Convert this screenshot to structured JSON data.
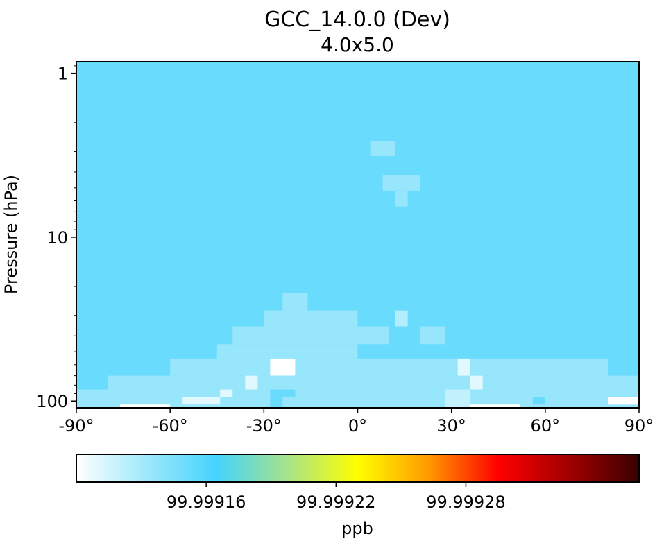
{
  "chart_data": {
    "type": "heatmap",
    "title": "GCC_14.0.0 (Dev)",
    "subtitle": "4.0x5.0",
    "xlabel": "",
    "ylabel": "Pressure (hPa)",
    "xlim": [
      -90,
      90
    ],
    "ylim": [
      0.85,
      110
    ],
    "yscale": "log",
    "xticks": [
      -90,
      -60,
      -30,
      0,
      30,
      60,
      90
    ],
    "xtick_labels": [
      "-90°",
      "-60°",
      "-30°",
      "0°",
      "30°",
      "60°",
      "90°"
    ],
    "yticks": [
      1,
      10,
      100
    ],
    "ytick_labels": [
      "1",
      "10",
      "100"
    ],
    "colorbar": {
      "label": "ppb",
      "range": [
        99.9991,
        99.99936
      ],
      "ticks": [
        99.99916,
        99.99922,
        99.99928
      ],
      "tick_labels": [
        "99.99916",
        "99.99922",
        "99.99928"
      ],
      "colormap": [
        "#ffffff",
        "#9ee8fb",
        "#45d3fe",
        "#a6e38a",
        "#ffff00",
        "#ff9a00",
        "#ff0000",
        "#a20000",
        "#3a0000"
      ]
    },
    "background_value": 99.999152,
    "anomalies": [
      {
        "lon": [
          4,
          12
        ],
        "p": [
          2.6,
          3.2
        ],
        "value": 99.999135
      },
      {
        "lon": [
          8,
          20
        ],
        "p": [
          4.2,
          5.2
        ],
        "value": 99.999135
      },
      {
        "lon": [
          12,
          16
        ],
        "p": [
          5.2,
          6.5
        ],
        "value": 99.999135
      },
      {
        "lon": [
          -24,
          -16
        ],
        "p": [
          22,
          28
        ],
        "value": 99.999135
      },
      {
        "lon": [
          -30,
          0
        ],
        "p": [
          28,
          35
        ],
        "value": 99.999135
      },
      {
        "lon": [
          -40,
          10
        ],
        "p": [
          35,
          45
        ],
        "value": 99.999135
      },
      {
        "lon": [
          12,
          16
        ],
        "p": [
          28,
          35
        ],
        "value": 99.999125
      },
      {
        "lon": [
          20,
          28
        ],
        "p": [
          35,
          45
        ],
        "value": 99.999135
      },
      {
        "lon": [
          -45,
          0
        ],
        "p": [
          45,
          55
        ],
        "value": 99.999135
      },
      {
        "lon": [
          -60,
          80
        ],
        "p": [
          55,
          70
        ],
        "value": 99.999135
      },
      {
        "lon": [
          -28,
          -20
        ],
        "p": [
          55,
          70
        ],
        "value": 99.9991
      },
      {
        "lon": [
          -80,
          90
        ],
        "p": [
          70,
          85
        ],
        "value": 99.999135
      },
      {
        "lon": [
          -36,
          -32
        ],
        "p": [
          70,
          85
        ],
        "value": 99.99911
      },
      {
        "lon": [
          32,
          36
        ],
        "p": [
          55,
          70
        ],
        "value": 99.99911
      },
      {
        "lon": [
          36,
          40
        ],
        "p": [
          70,
          85
        ],
        "value": 99.99911
      },
      {
        "lon": [
          -90,
          90
        ],
        "p": [
          85,
          110
        ],
        "value": 99.999135
      },
      {
        "lon": [
          -44,
          -40
        ],
        "p": [
          85,
          95
        ],
        "value": 99.99911
      },
      {
        "lon": [
          -56,
          -44
        ],
        "p": [
          95,
          105
        ],
        "value": 99.99911
      },
      {
        "lon": [
          28,
          36
        ],
        "p": [
          85,
          110
        ],
        "value": 99.99912
      },
      {
        "lon": [
          80,
          90
        ],
        "p": [
          95,
          105
        ],
        "value": 99.9991
      },
      {
        "lon": [
          -76,
          -60
        ],
        "p": [
          105,
          110
        ],
        "value": 99.9991
      },
      {
        "lon": [
          36,
          52
        ],
        "p": [
          105,
          110
        ],
        "value": 99.9991
      },
      {
        "lon": [
          -28,
          -20
        ],
        "p": [
          85,
          95
        ],
        "value": 99.999152
      },
      {
        "lon": [
          -4,
          0
        ],
        "p": [
          105,
          110
        ],
        "value": 99.999135
      },
      {
        "lon": [
          -28,
          -24
        ],
        "p": [
          95,
          110
        ],
        "value": 99.999152
      },
      {
        "lon": [
          56,
          60
        ],
        "p": [
          95,
          105
        ],
        "value": 99.999152
      }
    ]
  }
}
